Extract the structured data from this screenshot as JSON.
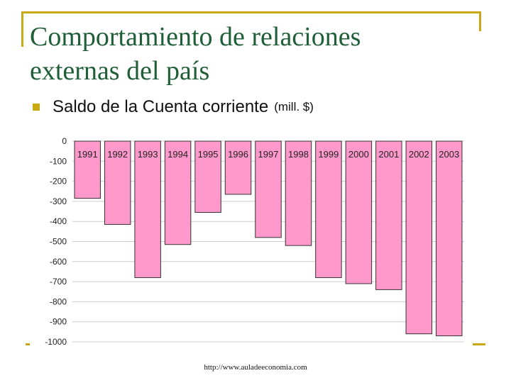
{
  "slide": {
    "title_line1": "Comportamiento de relaciones",
    "title_line2": "externas del país",
    "bullet_text": "Saldo de la Cuenta corriente",
    "bullet_unit": "(mill. $)",
    "source_url": "http://www.auladeeconomia.com"
  },
  "colors": {
    "accent": "#c8a915",
    "title": "#1f5e37",
    "bar_fill": "#ff99cc",
    "bar_stroke": "#333333",
    "grid": "#cccccc"
  },
  "chart_data": {
    "type": "bar",
    "title": "",
    "xlabel": "",
    "ylabel": "",
    "ylim": [
      -1000,
      0
    ],
    "yticks": [
      0,
      -100,
      -200,
      -300,
      -400,
      -500,
      -600,
      -700,
      -800,
      -900,
      -1000
    ],
    "grid": true,
    "legend": "none",
    "category_label_position": "top",
    "categories": [
      "1991",
      "1992",
      "1993",
      "1994",
      "1995",
      "1996",
      "1997",
      "1998",
      "1999",
      "2000",
      "2001",
      "2002",
      "2003"
    ],
    "values": [
      -285,
      -415,
      -680,
      -515,
      -355,
      -265,
      -480,
      -520,
      -680,
      -710,
      -740,
      -960,
      -970
    ]
  }
}
